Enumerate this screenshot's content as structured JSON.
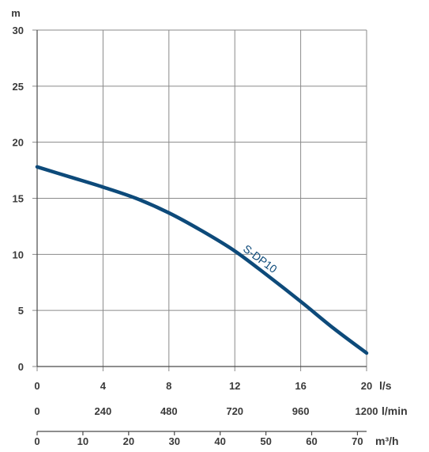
{
  "chart_data": {
    "type": "line",
    "title": "",
    "ylabel": "m",
    "ylim": [
      0,
      30
    ],
    "yticks": [
      0,
      5,
      10,
      15,
      20,
      25,
      30
    ],
    "x_axes": [
      {
        "unit": "l/s",
        "range": [
          0,
          20
        ],
        "ticks": [
          0,
          4,
          8,
          12,
          16,
          20
        ]
      },
      {
        "unit": "l/min",
        "range": [
          0,
          1200
        ],
        "ticks": [
          0,
          240,
          480,
          720,
          960,
          1200
        ]
      },
      {
        "unit": "m³/h",
        "range": [
          0,
          72
        ],
        "ticks": [
          0,
          10,
          20,
          30,
          40,
          50,
          60,
          70
        ]
      }
    ],
    "grid": true,
    "series": [
      {
        "name": "S-DP10",
        "color": "#0d4a7a",
        "x": [
          0,
          2,
          4,
          6,
          8,
          10,
          12,
          14,
          16,
          18,
          20
        ],
        "y": [
          17.8,
          16.9,
          16.0,
          15.0,
          13.7,
          12.1,
          10.3,
          8.1,
          5.8,
          3.4,
          1.2
        ]
      }
    ]
  }
}
